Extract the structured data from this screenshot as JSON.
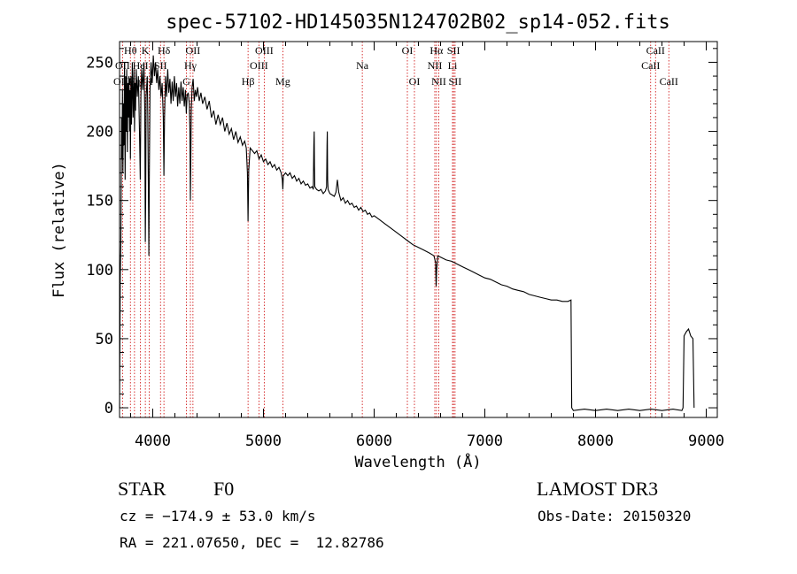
{
  "chart_data": {
    "type": "line",
    "title": "spec-57102-HD145035N124702B02_sp14-052.fits",
    "xlabel": "Wavelength (Å)",
    "ylabel": "Flux (relative)",
    "xlim": [
      3700,
      9100
    ],
    "ylim": [
      -7,
      265
    ],
    "xticks": [
      4000,
      5000,
      6000,
      7000,
      8000,
      9000
    ],
    "yticks": [
      0,
      50,
      100,
      150,
      200,
      250
    ],
    "grid": false,
    "line_color": "#000000",
    "marker_color": "#cc0000",
    "spectrum": [
      [
        3700,
        0
      ],
      [
        3706,
        95
      ],
      [
        3712,
        120
      ],
      [
        3718,
        210
      ],
      [
        3722,
        180
      ],
      [
        3726,
        230
      ],
      [
        3730,
        170
      ],
      [
        3735,
        220
      ],
      [
        3740,
        190
      ],
      [
        3745,
        250
      ],
      [
        3750,
        165
      ],
      [
        3755,
        240
      ],
      [
        3760,
        200
      ],
      [
        3765,
        245
      ],
      [
        3770,
        185
      ],
      [
        3775,
        235
      ],
      [
        3780,
        210
      ],
      [
        3785,
        240
      ],
      [
        3790,
        200
      ],
      [
        3795,
        230
      ],
      [
        3798,
        180
      ],
      [
        3803,
        240
      ],
      [
        3808,
        205
      ],
      [
        3815,
        250
      ],
      [
        3822,
        210
      ],
      [
        3830,
        245
      ],
      [
        3835,
        200
      ],
      [
        3840,
        235
      ],
      [
        3845,
        215
      ],
      [
        3850,
        245
      ],
      [
        3860,
        225
      ],
      [
        3870,
        240
      ],
      [
        3880,
        200
      ],
      [
        3887,
        165
      ],
      [
        3893,
        225
      ],
      [
        3900,
        245
      ],
      [
        3910,
        230
      ],
      [
        3920,
        250
      ],
      [
        3928,
        215
      ],
      [
        3933,
        120
      ],
      [
        3936,
        150
      ],
      [
        3940,
        225
      ],
      [
        3950,
        240
      ],
      [
        3955,
        210
      ],
      [
        3962,
        140
      ],
      [
        3965,
        110
      ],
      [
        3969,
        165
      ],
      [
        3975,
        230
      ],
      [
        3985,
        250
      ],
      [
        3995,
        235
      ],
      [
        4005,
        255
      ],
      [
        4015,
        240
      ],
      [
        4025,
        250
      ],
      [
        4035,
        235
      ],
      [
        4045,
        245
      ],
      [
        4055,
        230
      ],
      [
        4065,
        240
      ],
      [
        4075,
        225
      ],
      [
        4085,
        235
      ],
      [
        4095,
        210
      ],
      [
        4101,
        168
      ],
      [
        4106,
        210
      ],
      [
        4115,
        240
      ],
      [
        4125,
        225
      ],
      [
        4135,
        245
      ],
      [
        4145,
        228
      ],
      [
        4155,
        238
      ],
      [
        4165,
        220
      ],
      [
        4175,
        236
      ],
      [
        4185,
        222
      ],
      [
        4195,
        240
      ],
      [
        4205,
        225
      ],
      [
        4215,
        235
      ],
      [
        4225,
        218
      ],
      [
        4235,
        232
      ],
      [
        4245,
        220
      ],
      [
        4255,
        236
      ],
      [
        4265,
        222
      ],
      [
        4275,
        232
      ],
      [
        4285,
        218
      ],
      [
        4295,
        230
      ],
      [
        4303,
        213
      ],
      [
        4310,
        226
      ],
      [
        4320,
        228
      ],
      [
        4330,
        220
      ],
      [
        4336,
        200
      ],
      [
        4340,
        150
      ],
      [
        4343,
        175
      ],
      [
        4348,
        215
      ],
      [
        4355,
        232
      ],
      [
        4365,
        238
      ],
      [
        4375,
        222
      ],
      [
        4385,
        230
      ],
      [
        4395,
        225
      ],
      [
        4405,
        232
      ],
      [
        4420,
        222
      ],
      [
        4435,
        228
      ],
      [
        4450,
        220
      ],
      [
        4470,
        225
      ],
      [
        4490,
        216
      ],
      [
        4510,
        222
      ],
      [
        4530,
        210
      ],
      [
        4550,
        215
      ],
      [
        4570,
        205
      ],
      [
        4590,
        212
      ],
      [
        4610,
        205
      ],
      [
        4630,
        210
      ],
      [
        4650,
        200
      ],
      [
        4670,
        206
      ],
      [
        4690,
        198
      ],
      [
        4710,
        202
      ],
      [
        4730,
        194
      ],
      [
        4750,
        200
      ],
      [
        4770,
        192
      ],
      [
        4790,
        196
      ],
      [
        4810,
        190
      ],
      [
        4830,
        193
      ],
      [
        4845,
        188
      ],
      [
        4855,
        170
      ],
      [
        4861,
        135
      ],
      [
        4867,
        172
      ],
      [
        4880,
        188
      ],
      [
        4900,
        186
      ],
      [
        4920,
        184
      ],
      [
        4940,
        186
      ],
      [
        4960,
        180
      ],
      [
        4980,
        183
      ],
      [
        5000,
        178
      ],
      [
        5020,
        180
      ],
      [
        5040,
        176
      ],
      [
        5060,
        178
      ],
      [
        5080,
        174
      ],
      [
        5100,
        176
      ],
      [
        5120,
        172
      ],
      [
        5140,
        174
      ],
      [
        5160,
        170
      ],
      [
        5170,
        165
      ],
      [
        5175,
        158
      ],
      [
        5180,
        168
      ],
      [
        5200,
        170
      ],
      [
        5220,
        168
      ],
      [
        5240,
        170
      ],
      [
        5260,
        166
      ],
      [
        5280,
        168
      ],
      [
        5300,
        164
      ],
      [
        5320,
        166
      ],
      [
        5340,
        162
      ],
      [
        5360,
        164
      ],
      [
        5380,
        161
      ],
      [
        5400,
        162
      ],
      [
        5420,
        159
      ],
      [
        5440,
        160
      ],
      [
        5450,
        158
      ],
      [
        5455,
        190
      ],
      [
        5458,
        200
      ],
      [
        5461,
        175
      ],
      [
        5464,
        160
      ],
      [
        5480,
        158
      ],
      [
        5500,
        157
      ],
      [
        5520,
        158
      ],
      [
        5540,
        155
      ],
      [
        5560,
        157
      ],
      [
        5570,
        160
      ],
      [
        5574,
        190
      ],
      [
        5577,
        200
      ],
      [
        5580,
        165
      ],
      [
        5584,
        158
      ],
      [
        5600,
        155
      ],
      [
        5620,
        154
      ],
      [
        5640,
        153
      ],
      [
        5655,
        156
      ],
      [
        5668,
        165
      ],
      [
        5680,
        156
      ],
      [
        5700,
        150
      ],
      [
        5720,
        152
      ],
      [
        5740,
        148
      ],
      [
        5760,
        150
      ],
      [
        5780,
        147
      ],
      [
        5800,
        148
      ],
      [
        5820,
        145
      ],
      [
        5840,
        146
      ],
      [
        5860,
        143
      ],
      [
        5880,
        145
      ],
      [
        5900,
        142
      ],
      [
        5920,
        143
      ],
      [
        5940,
        140
      ],
      [
        5960,
        141
      ],
      [
        5980,
        138
      ],
      [
        6000,
        139
      ],
      [
        6050,
        136
      ],
      [
        6100,
        133
      ],
      [
        6150,
        130
      ],
      [
        6200,
        127
      ],
      [
        6250,
        124
      ],
      [
        6300,
        121
      ],
      [
        6350,
        118
      ],
      [
        6400,
        116
      ],
      [
        6450,
        114
      ],
      [
        6500,
        112
      ],
      [
        6540,
        110
      ],
      [
        6555,
        105
      ],
      [
        6560,
        88
      ],
      [
        6565,
        100
      ],
      [
        6575,
        110
      ],
      [
        6600,
        109
      ],
      [
        6650,
        107
      ],
      [
        6700,
        106
      ],
      [
        6750,
        104
      ],
      [
        6800,
        102
      ],
      [
        6850,
        100
      ],
      [
        6900,
        98
      ],
      [
        6950,
        96
      ],
      [
        7000,
        94
      ],
      [
        7050,
        93
      ],
      [
        7100,
        91
      ],
      [
        7150,
        89
      ],
      [
        7200,
        88
      ],
      [
        7250,
        86
      ],
      [
        7300,
        85
      ],
      [
        7350,
        84
      ],
      [
        7400,
        82
      ],
      [
        7450,
        81
      ],
      [
        7500,
        80
      ],
      [
        7550,
        79
      ],
      [
        7600,
        78
      ],
      [
        7650,
        78
      ],
      [
        7700,
        77
      ],
      [
        7750,
        77
      ],
      [
        7778,
        78
      ],
      [
        7785,
        0
      ],
      [
        7800,
        -2
      ],
      [
        7900,
        -1
      ],
      [
        8000,
        -2
      ],
      [
        8100,
        -1
      ],
      [
        8200,
        -2
      ],
      [
        8300,
        -1
      ],
      [
        8400,
        -2
      ],
      [
        8500,
        -1
      ],
      [
        8600,
        -2
      ],
      [
        8700,
        -1
      ],
      [
        8780,
        -2
      ],
      [
        8790,
        0
      ],
      [
        8800,
        52
      ],
      [
        8820,
        55
      ],
      [
        8840,
        57
      ],
      [
        8860,
        52
      ],
      [
        8880,
        50
      ],
      [
        8890,
        0
      ]
    ]
  },
  "line_markers": [
    {
      "label": "Hθ",
      "wl": 3798,
      "row": 1
    },
    {
      "label": "OII",
      "wl": 3727,
      "row": 2
    },
    {
      "label": "OIII",
      "wl": 3727,
      "row": 3
    },
    {
      "label": "K",
      "wl": 3933,
      "row": 1
    },
    {
      "label": "HeI",
      "wl": 3889,
      "row": 2
    },
    {
      "label": "Hη",
      "wl": 3835,
      "row": 3
    },
    {
      "label": "Hδ",
      "wl": 4101,
      "row": 1
    },
    {
      "label": "SII",
      "wl": 4070,
      "row": 2
    },
    {
      "label": "H",
      "wl": 3968,
      "row": 3
    },
    {
      "label": "OII",
      "wl": 4363,
      "row": 1
    },
    {
      "label": "Hγ",
      "wl": 4340,
      "row": 2
    },
    {
      "label": "G",
      "wl": 4304,
      "row": 3
    },
    {
      "label": "OIII",
      "wl": 5007,
      "row": 1
    },
    {
      "label": "OIII",
      "wl": 4959,
      "row": 2
    },
    {
      "label": "Hβ",
      "wl": 4861,
      "row": 3
    },
    {
      "label": "Mg",
      "wl": 5175,
      "row": 3
    },
    {
      "label": "Na",
      "wl": 5893,
      "row": 2
    },
    {
      "label": "OI",
      "wl": 6300,
      "row": 1
    },
    {
      "label": "OI",
      "wl": 6364,
      "row": 3
    },
    {
      "label": "Hα",
      "wl": 6563,
      "row": 1
    },
    {
      "label": "NII",
      "wl": 6548,
      "row": 2
    },
    {
      "label": "NII",
      "wl": 6584,
      "row": 3
    },
    {
      "label": "SII",
      "wl": 6717,
      "row": 1
    },
    {
      "label": "Li",
      "wl": 6708,
      "row": 2
    },
    {
      "label": "SII",
      "wl": 6731,
      "row": 3
    },
    {
      "label": "CaII",
      "wl": 8542,
      "row": 1
    },
    {
      "label": "CaII",
      "wl": 8498,
      "row": 2
    },
    {
      "label": "CaII",
      "wl": 8662,
      "row": 3
    }
  ],
  "info": {
    "object_class": "STAR",
    "subclass": "F0",
    "survey": "LAMOST DR3",
    "redshift": "cz = −174.9 ± 53.0 km/s",
    "obs_date": "Obs-Date: 20150320",
    "coords": "RA = 221.07650, DEC =  12.82786"
  }
}
